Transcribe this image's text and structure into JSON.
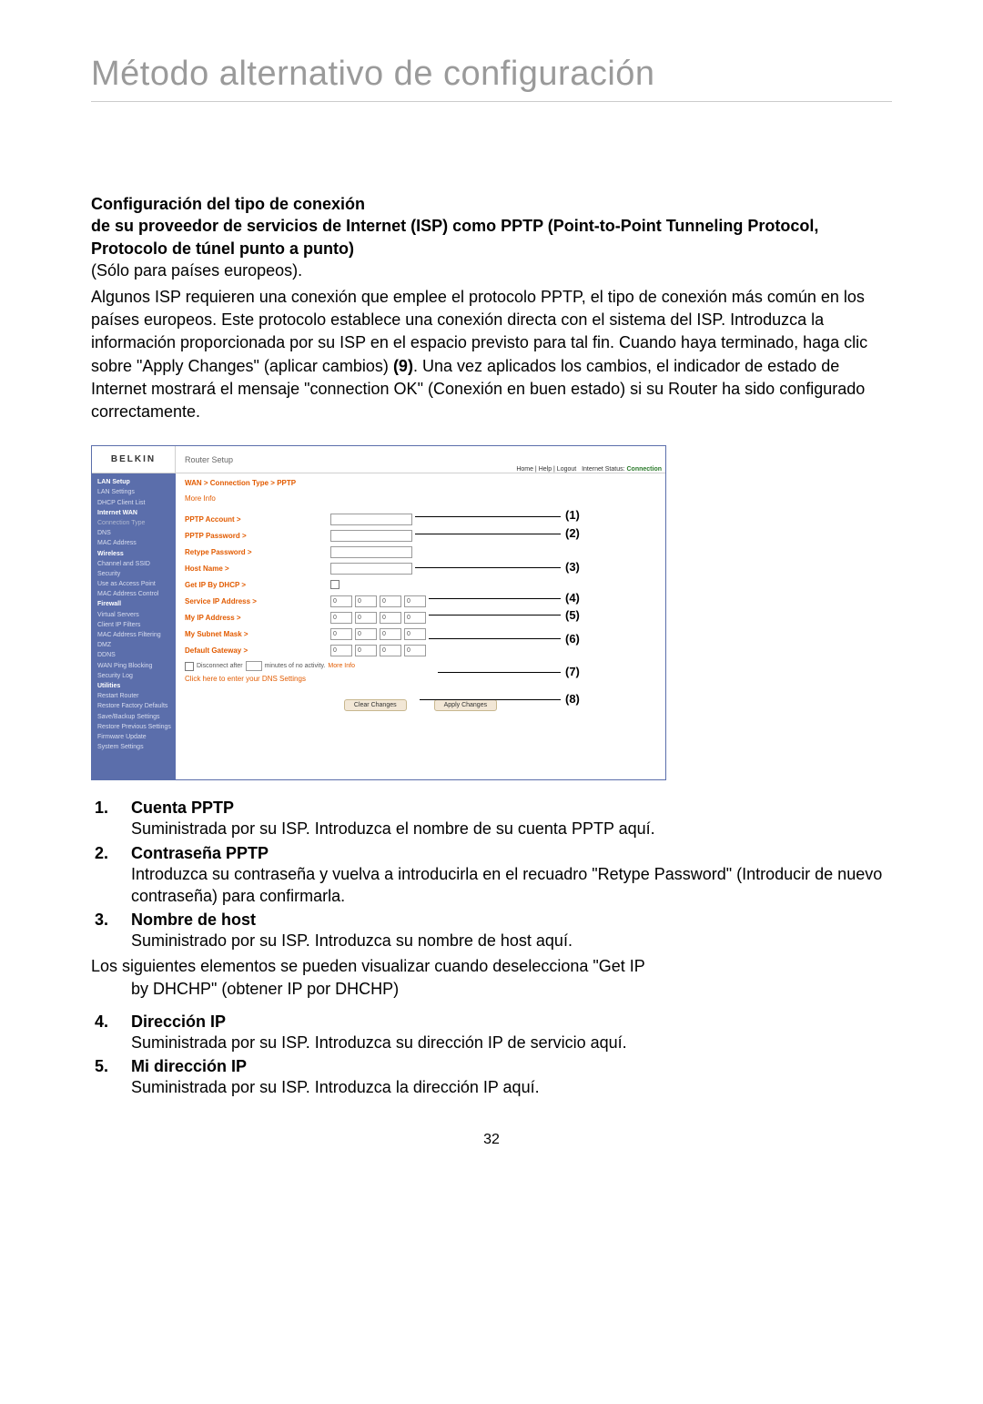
{
  "page": {
    "title": "Método alternativo de configuración",
    "number": "32"
  },
  "intro": {
    "heading_l1": "Configuración del tipo de conexión",
    "heading_l2": "de su proveedor de servicios de Internet (ISP) como PPTP (Point-to-Point Tunneling Protocol, Protocolo de túnel punto a punto)",
    "subnote": "(Sólo para países europeos).",
    "para_part1": "Algunos ISP requieren una conexión que emplee el protocolo PPTP, el tipo de conexión más común en los países europeos. Este protocolo establece una conexión directa con el sistema del ISP. Introduzca la información proporcionada por su ISP en el espacio previsto para tal fin. Cuando haya terminado, haga clic sobre \"Apply Changes\" (aplicar cambios) ",
    "para_bold9": "(9)",
    "para_part2": ". Una vez aplicados los cambios, el indicador de estado de Internet mostrará el mensaje \"connection OK\" (Conexión en buen estado) si su Router ha sido configurado correctamente."
  },
  "router": {
    "brand": "BELKIN",
    "setup_label": "Router Setup",
    "status_links": "Home | Help | Logout",
    "status_label": "Internet Status:",
    "status_value": "Connection",
    "breadcrumb": "WAN > Connection Type > PPTP",
    "more_info": "More Info",
    "dns_link": "Click here to enter your DNS Settings",
    "disconnect_prefix": "Disconnect after",
    "disconnect_suffix": "minutes of no activity.",
    "disconnect_more": "More Info",
    "buttons": {
      "clear": "Clear Changes",
      "apply": "Apply Changes"
    },
    "ip_placeholder": "0",
    "fields": {
      "pptp_account": "PPTP Account >",
      "pptp_password": "PPTP Password >",
      "retype_password": "Retype Password >",
      "host_name": "Host Name >",
      "get_ip_dhcp": "Get IP By DHCP >",
      "service_ip": "Service IP Address >",
      "my_ip": "My IP Address >",
      "subnet": "My Subnet Mask >",
      "gateway": "Default Gateway >"
    },
    "sidebar": [
      {
        "t": "LAN Setup",
        "h": true
      },
      {
        "t": "LAN Settings"
      },
      {
        "t": "DHCP Client List"
      },
      {
        "t": "Internet WAN",
        "h": true
      },
      {
        "t": "Connection Type",
        "sel": true
      },
      {
        "t": "DNS"
      },
      {
        "t": "MAC Address"
      },
      {
        "t": "Wireless",
        "h": true
      },
      {
        "t": "Channel and SSID"
      },
      {
        "t": "Security"
      },
      {
        "t": "Use as Access Point"
      },
      {
        "t": "MAC Address Control"
      },
      {
        "t": "Firewall",
        "h": true
      },
      {
        "t": "Virtual Servers"
      },
      {
        "t": "Client IP Filters"
      },
      {
        "t": "MAC Address Filtering"
      },
      {
        "t": "DMZ"
      },
      {
        "t": "DDNS"
      },
      {
        "t": "WAN Ping Blocking"
      },
      {
        "t": "Security Log"
      },
      {
        "t": "Utilities",
        "h": true
      },
      {
        "t": "Restart Router"
      },
      {
        "t": "Restore Factory Defaults"
      },
      {
        "t": "Save/Backup Settings"
      },
      {
        "t": "Restore Previous Settings"
      },
      {
        "t": "Firmware Update"
      },
      {
        "t": "System Settings"
      }
    ]
  },
  "callouts": [
    "(1)",
    "(2)",
    "(3)",
    "(4)",
    "(5)",
    "(6)",
    "(7)",
    "(8)"
  ],
  "defs": [
    {
      "n": "1.",
      "title": "Cuenta PPTP",
      "desc": "Suministrada por su ISP. Introduzca el nombre de su cuenta PPTP aquí."
    },
    {
      "n": "2.",
      "title": "Contraseña PPTP",
      "desc": "Introduzca su contraseña y vuelva a introducirla en el recuadro \"Retype Password\" (Introducir de nuevo contraseña) para confirmarla."
    },
    {
      "n": "3.",
      "title": "Nombre de host",
      "desc": "Suministrado por su ISP. Introduzca su nombre de host aquí."
    }
  ],
  "inter_note": {
    "line1": "Los siguientes elementos se pueden visualizar cuando deselecciona \"Get IP",
    "line2": "by DHCHP\" (obtener IP por DHCHP)"
  },
  "defs2": [
    {
      "n": "4.",
      "title": " Dirección IP",
      "desc": "Suministrada por su ISP. Introduzca su dirección IP de servicio aquí."
    },
    {
      "n": "5.",
      "title": "Mi dirección IP",
      "desc": "Suministrada por su ISP. Introduzca la dirección IP aquí."
    }
  ]
}
